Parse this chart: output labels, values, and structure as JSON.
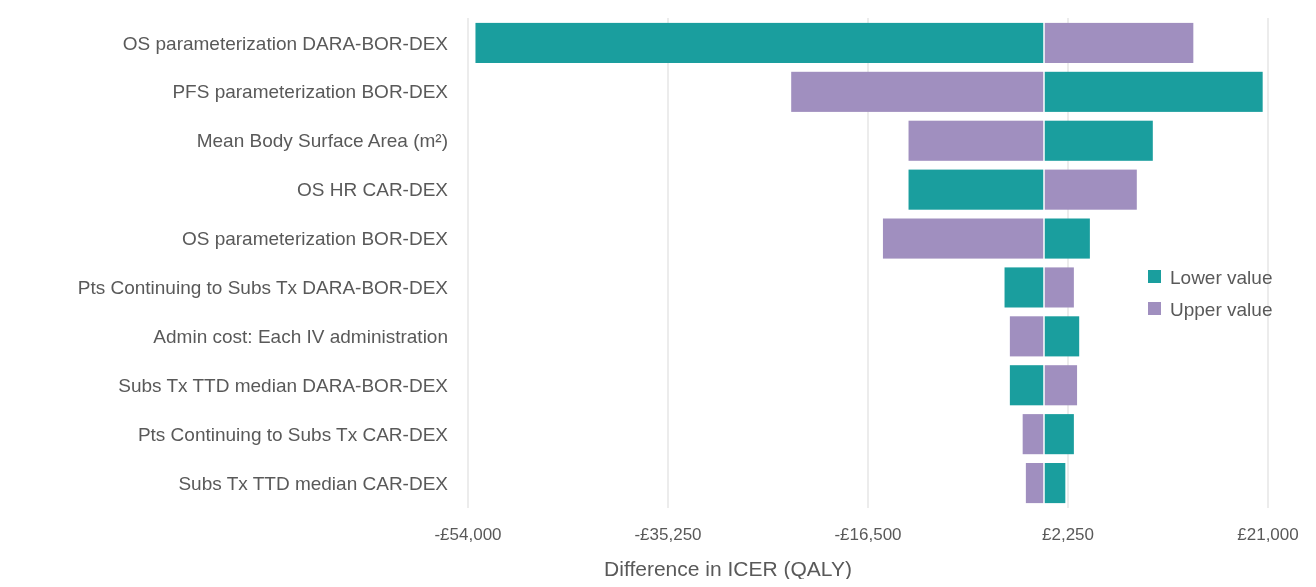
{
  "chart_data": {
    "type": "bar",
    "orientation": "horizontal",
    "xlabel": "Difference in ICER (QALY)",
    "categories": [
      "OS parameterization DARA-BOR-DEX",
      "PFS parameterization BOR-DEX",
      "Mean Body Surface Area (m²)",
      "OS HR CAR-DEX",
      "OS parameterization BOR-DEX",
      "Pts Continuing to Subs Tx DARA-BOR-DEX",
      "Admin cost: Each IV administration",
      "Subs Tx TTD median  DARA-BOR-DEX",
      "Pts Continuing to Subs Tx CAR-DEX",
      "Subs Tx TTD median  CAR-DEX"
    ],
    "series": [
      {
        "name": "Lower value",
        "color": "#1a9e9e",
        "values": [
          -53300,
          20500,
          10200,
          -12700,
          4300,
          -3700,
          3300,
          -3200,
          2800,
          2000
        ]
      },
      {
        "name": "Upper value",
        "color": "#a08fbf",
        "values": [
          14000,
          -23700,
          -12700,
          8700,
          -15100,
          2800,
          -3200,
          3100,
          -2000,
          -1700
        ]
      }
    ],
    "xlim": [
      -54000,
      21000
    ],
    "xticks": [
      {
        "value": -54000,
        "label": "-£54,000"
      },
      {
        "value": -35250,
        "label": "-£35,250"
      },
      {
        "value": -16500,
        "label": "-£16,500"
      },
      {
        "value": 2250,
        "label": "£2,250"
      },
      {
        "value": 21000,
        "label": "£21,000"
      }
    ],
    "stacked": true,
    "grid": "x",
    "legend": "right"
  }
}
